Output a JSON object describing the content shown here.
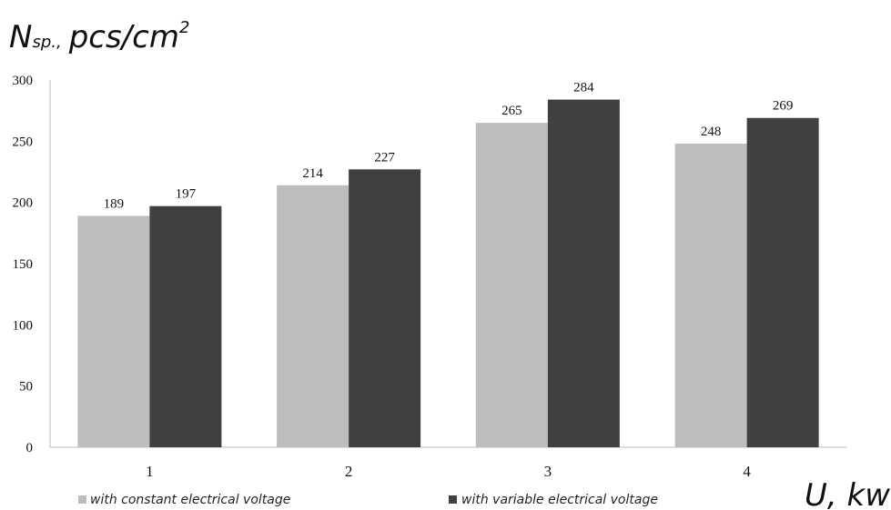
{
  "chart_data": {
    "type": "bar",
    "ylabel_main": "N",
    "ylabel_sub": "sp.,",
    "ylabel_unit": "pcs/cm",
    "ylabel_exp": "2",
    "xlabel": "U, kw",
    "categories": [
      "1",
      "2",
      "3",
      "4"
    ],
    "ylim": [
      0,
      300
    ],
    "yticks": [
      0,
      50,
      100,
      150,
      200,
      250,
      300
    ],
    "grid": false,
    "legend_position": "bottom",
    "series": [
      {
        "name": "with constant electrical voltage",
        "values": [
          189,
          214,
          265,
          248
        ],
        "color": "#bdbdbd"
      },
      {
        "name": "with variable electrical voltage",
        "values": [
          197,
          227,
          284,
          269
        ],
        "color": "#404040"
      }
    ]
  }
}
